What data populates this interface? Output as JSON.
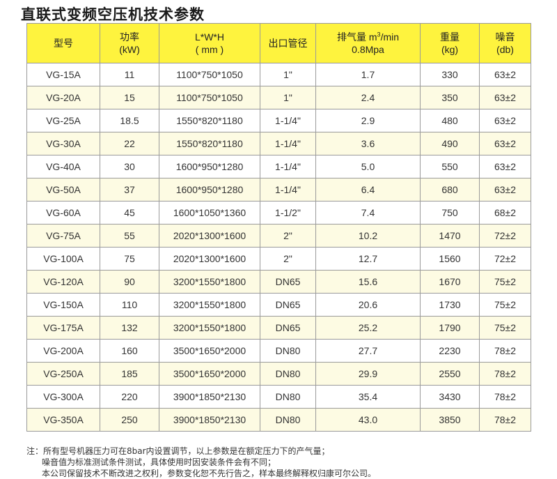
{
  "title": "直联式变频空压机技术参数",
  "header": {
    "model": "型号",
    "power": [
      "功率",
      "(kW)"
    ],
    "dims": [
      "L*W*H",
      "( mm )"
    ],
    "outlet": "出口管径",
    "air": [
      "排气量 m",
      "3",
      "/min",
      "0.8Mpa"
    ],
    "weight": [
      "重量",
      "(kg)"
    ],
    "noise": [
      "噪音",
      "(db)"
    ]
  },
  "rows": [
    {
      "model": "VG-15A",
      "power": "11",
      "dims": "1100*750*1050",
      "outlet": "1\"",
      "air": "1.7",
      "weight": "330",
      "noise": "63±2"
    },
    {
      "model": "VG-20A",
      "power": "15",
      "dims": "1100*750*1050",
      "outlet": "1\"",
      "air": "2.4",
      "weight": "350",
      "noise": "63±2"
    },
    {
      "model": "VG-25A",
      "power": "18.5",
      "dims": "1550*820*1180",
      "outlet": "1-1/4\"",
      "air": "2.9",
      "weight": "480",
      "noise": "63±2"
    },
    {
      "model": "VG-30A",
      "power": "22",
      "dims": "1550*820*1180",
      "outlet": "1-1/4\"",
      "air": "3.6",
      "weight": "490",
      "noise": "63±2"
    },
    {
      "model": "VG-40A",
      "power": "30",
      "dims": "1600*950*1280",
      "outlet": "1-1/4\"",
      "air": "5.0",
      "weight": "550",
      "noise": "63±2"
    },
    {
      "model": "VG-50A",
      "power": "37",
      "dims": "1600*950*1280",
      "outlet": "1-1/4\"",
      "air": "6.4",
      "weight": "680",
      "noise": "63±2"
    },
    {
      "model": "VG-60A",
      "power": "45",
      "dims": "1600*1050*1360",
      "outlet": "1-1/2\"",
      "air": "7.4",
      "weight": "750",
      "noise": "68±2"
    },
    {
      "model": "VG-75A",
      "power": "55",
      "dims": "2020*1300*1600",
      "outlet": "2\"",
      "air": "10.2",
      "weight": "1470",
      "noise": "72±2"
    },
    {
      "model": "VG-100A",
      "power": "75",
      "dims": "2020*1300*1600",
      "outlet": "2\"",
      "air": "12.7",
      "weight": "1560",
      "noise": "72±2"
    },
    {
      "model": "VG-120A",
      "power": "90",
      "dims": "3200*1550*1800",
      "outlet": "DN65",
      "air": "15.6",
      "weight": "1670",
      "noise": "75±2"
    },
    {
      "model": "VG-150A",
      "power": "110",
      "dims": "3200*1550*1800",
      "outlet": "DN65",
      "air": "20.6",
      "weight": "1730",
      "noise": "75±2"
    },
    {
      "model": "VG-175A",
      "power": "132",
      "dims": "3200*1550*1800",
      "outlet": "DN65",
      "air": "25.2",
      "weight": "1790",
      "noise": "75±2"
    },
    {
      "model": "VG-200A",
      "power": "160",
      "dims": "3500*1650*2000",
      "outlet": "DN80",
      "air": "27.7",
      "weight": "2230",
      "noise": "78±2"
    },
    {
      "model": "VG-250A",
      "power": "185",
      "dims": "3500*1650*2000",
      "outlet": "DN80",
      "air": "29.9",
      "weight": "2550",
      "noise": "78±2"
    },
    {
      "model": "VG-300A",
      "power": "220",
      "dims": "3900*1850*2130",
      "outlet": "DN80",
      "air": "35.4",
      "weight": "3430",
      "noise": "78±2"
    },
    {
      "model": "VG-350A",
      "power": "250",
      "dims": "3900*1850*2130",
      "outlet": "DN80",
      "air": "43.0",
      "weight": "3850",
      "noise": "78±2"
    }
  ],
  "notes": {
    "line1": "注：所有型号机器压力可在8bar内设置调节，以上参数是在额定压力下的产气量；",
    "line2": "噪音值为标准测试条件测试，具体使用时因安装条件会有不同；",
    "line3": "本公司保留技术不断改进之权利，参数变化恕不先行告之，样本最终解释权归康可尔公司。"
  },
  "colors": {
    "header_bg": "#fef33e",
    "alt_row_bg": "#fdfbe3",
    "border": "#9a9a9a"
  }
}
